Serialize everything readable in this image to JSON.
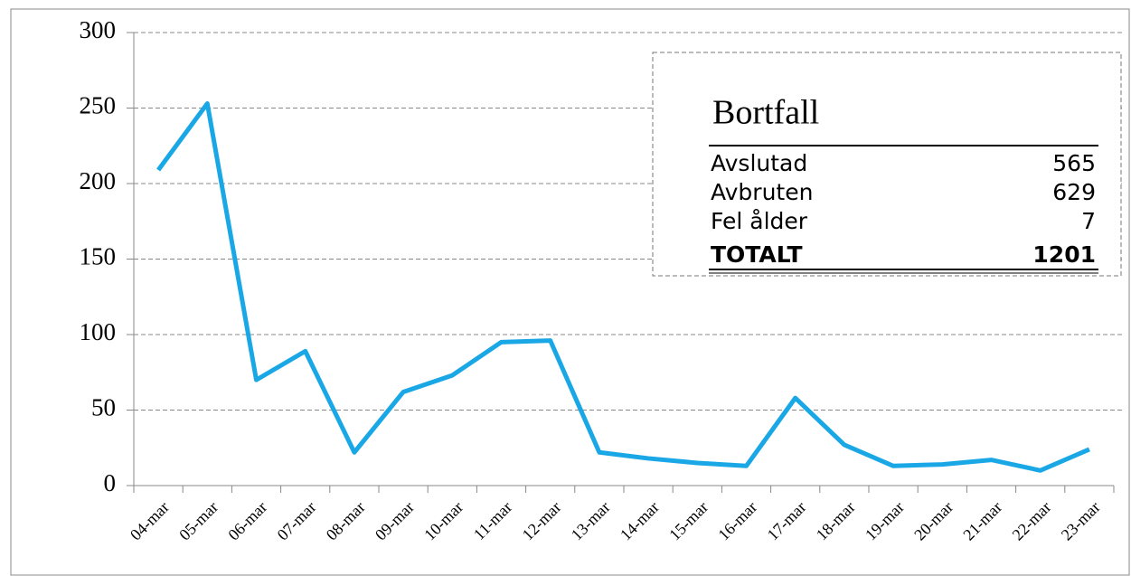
{
  "chart_data": {
    "type": "line",
    "categories": [
      "04-mar",
      "05-mar",
      "06-mar",
      "07-mar",
      "08-mar",
      "09-mar",
      "10-mar",
      "11-mar",
      "12-mar",
      "13-mar",
      "14-mar",
      "15-mar",
      "16-mar",
      "17-mar",
      "18-mar",
      "19-mar",
      "20-mar",
      "21-mar",
      "22-mar",
      "23-mar"
    ],
    "values": [
      209,
      253,
      70,
      89,
      22,
      62,
      73,
      95,
      96,
      22,
      18,
      15,
      13,
      58,
      27,
      13,
      14,
      17,
      10,
      24
    ],
    "color": "#1aa7e6",
    "ylim": [
      0,
      300
    ],
    "yticks": [
      0,
      50,
      100,
      150,
      200,
      250,
      300
    ],
    "grid": true,
    "table": {
      "title": "Bortfall",
      "rows": [
        [
          "Avslutad",
          "565"
        ],
        [
          "Avbruten",
          "629"
        ],
        [
          "Fel ålder",
          "7"
        ]
      ],
      "total": [
        "TOTALT",
        "1201"
      ]
    }
  }
}
